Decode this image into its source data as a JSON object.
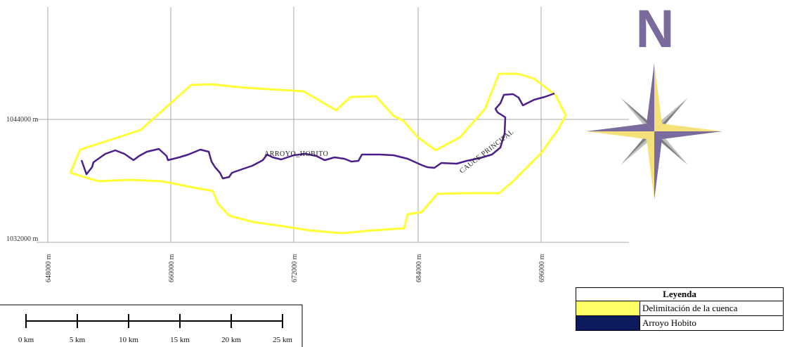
{
  "map": {
    "grid_lines": {
      "northing": [
        {
          "label": "1044000 m"
        },
        {
          "label": "1032000 m"
        }
      ],
      "easting": [
        {
          "label": "648000 m"
        },
        {
          "label": "660000 m"
        },
        {
          "label": "672000 m"
        },
        {
          "label": "684000 m"
        },
        {
          "label": "696000 m"
        }
      ]
    },
    "labels": {
      "river": "ARROYO_HOBITO",
      "channel": "CAUCE PRINCIPAL"
    },
    "north_arrow": {
      "letter": "N",
      "color": "#7b6a9e",
      "accent": "#f5e17a"
    },
    "scale_bar": {
      "labels": [
        "0 km",
        "5 km",
        "10 km",
        "15 km",
        "20 km",
        "25 km"
      ]
    },
    "colors": {
      "basin_outline": "#ffff33",
      "river": "#4b1e8c",
      "grid": "#aaaaaa"
    }
  },
  "legend": {
    "title": "Leyenda",
    "items": [
      {
        "label": "Delimitación de la cuenca",
        "color": "#ffff66"
      },
      {
        "label": "Arroyo Hobito",
        "color": "#0d1b5e"
      }
    ]
  }
}
